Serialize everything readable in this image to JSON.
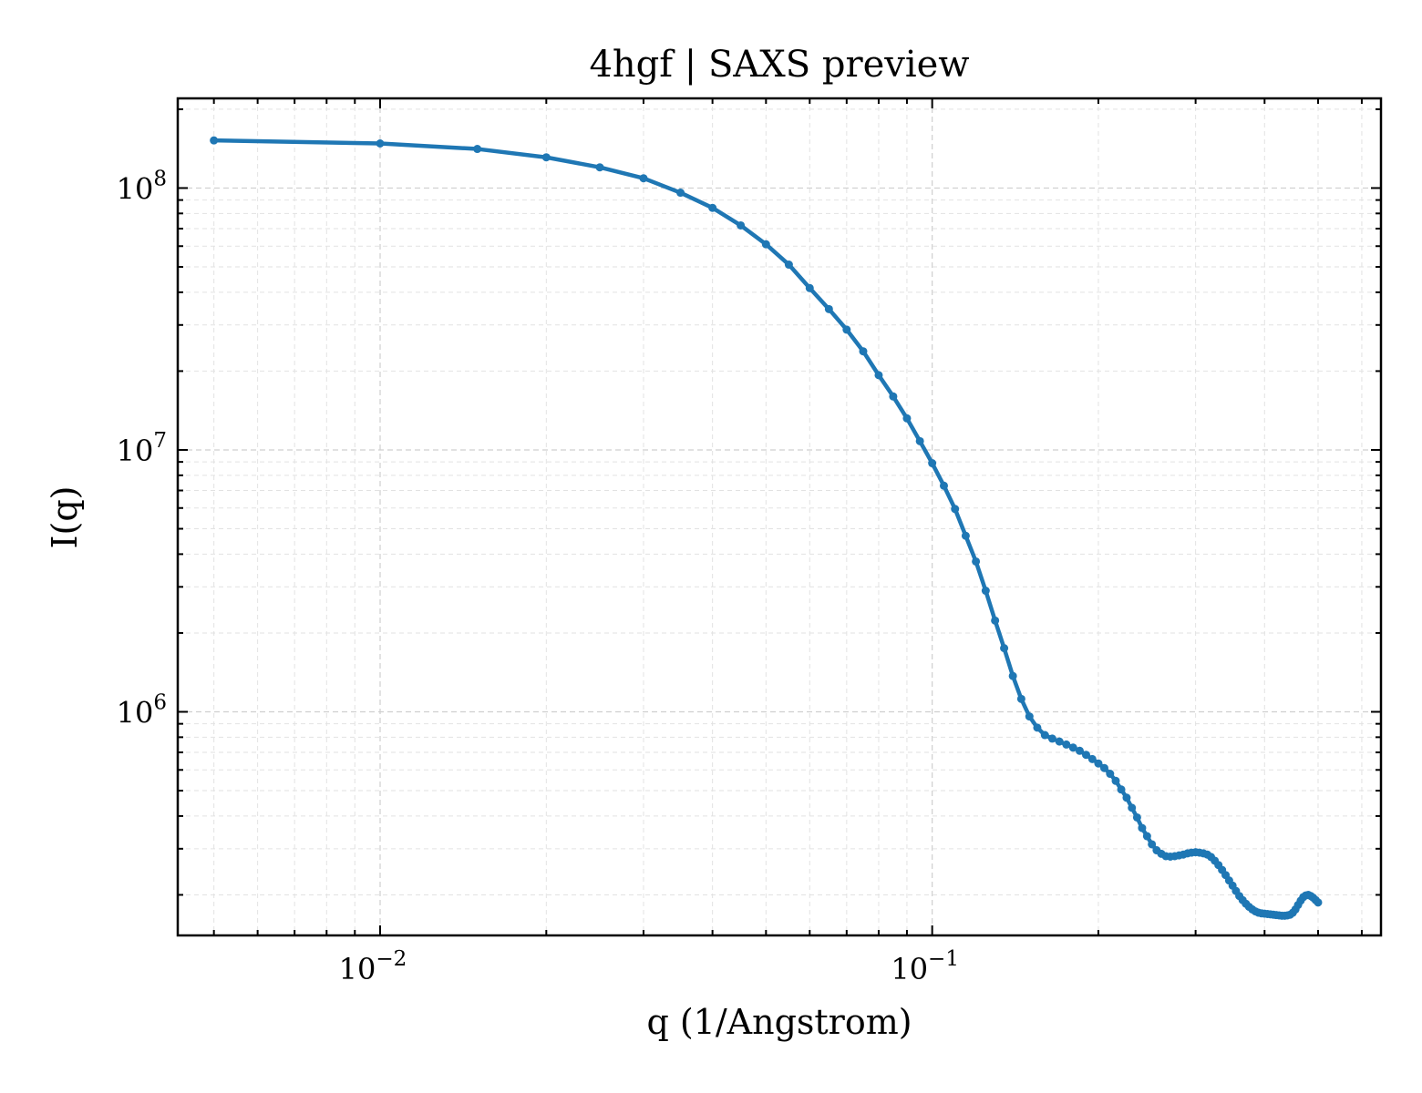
{
  "chart_data": {
    "type": "line",
    "title": "4hgf | SAXS preview",
    "xlabel": "q (1/Angstrom)",
    "ylabel": "I(q)",
    "xscale": "log",
    "yscale": "log",
    "xlim": [
      0.0043,
      0.65
    ],
    "ylim": [
      140000,
      220000000
    ],
    "grid": "on (major and minor, dashed)",
    "legend": "none",
    "ticks_direction": "in",
    "x_ticks": [
      {
        "value": 0.01,
        "base": "10",
        "exp": "−2"
      },
      {
        "value": 0.1,
        "base": "10",
        "exp": "−1"
      }
    ],
    "y_ticks": [
      {
        "value": 1000000,
        "base": "10",
        "exp": "6"
      },
      {
        "value": 10000000,
        "base": "10",
        "exp": "7"
      },
      {
        "value": 100000000,
        "base": "10",
        "exp": "8"
      }
    ],
    "colors": {
      "series": "#1f77b4"
    },
    "series": [
      {
        "x": [
          0.005,
          0.01,
          0.015,
          0.02,
          0.025,
          0.03,
          0.035,
          0.04,
          0.045,
          0.05,
          0.055,
          0.06,
          0.065,
          0.07,
          0.075,
          0.08,
          0.085,
          0.09,
          0.095,
          0.1,
          0.105,
          0.11,
          0.115,
          0.12,
          0.125,
          0.13,
          0.135,
          0.14,
          0.145,
          0.15,
          0.155,
          0.16,
          0.165,
          0.17,
          0.175,
          0.18,
          0.185,
          0.19,
          0.195,
          0.2,
          0.205,
          0.21,
          0.215,
          0.22,
          0.225,
          0.23,
          0.235,
          0.24,
          0.245,
          0.25,
          0.255,
          0.26,
          0.265,
          0.27,
          0.275,
          0.28,
          0.285,
          0.29,
          0.295,
          0.3,
          0.305,
          0.31,
          0.315,
          0.32,
          0.325,
          0.33,
          0.335,
          0.34,
          0.345,
          0.35,
          0.355,
          0.36,
          0.365,
          0.37,
          0.375,
          0.38,
          0.385,
          0.39,
          0.395,
          0.4,
          0.405,
          0.41,
          0.415,
          0.42,
          0.425,
          0.43,
          0.435,
          0.44,
          0.445,
          0.45,
          0.455,
          0.46,
          0.465,
          0.47,
          0.475,
          0.48,
          0.485,
          0.49,
          0.495,
          0.5
        ],
        "y": [
          152000000,
          148000000,
          141000000,
          131000000,
          120000000,
          109000000,
          96000000,
          84000000,
          72000000,
          61000000,
          51000000,
          41500000,
          34500000,
          28800000,
          23800000,
          19300000,
          16000000,
          13200000,
          10800000,
          8900000,
          7300000,
          5950000,
          4700000,
          3750000,
          2900000,
          2230000,
          1750000,
          1370000,
          1120000,
          960000,
          870000,
          815000,
          790000,
          770000,
          750000,
          730000,
          710000,
          685000,
          660000,
          635000,
          610000,
          580000,
          545000,
          505000,
          470000,
          430000,
          395000,
          360000,
          335000,
          312000,
          296000,
          287000,
          281000,
          280000,
          281000,
          283000,
          285000,
          288000,
          290000,
          291000,
          290000,
          288000,
          285000,
          279000,
          270000,
          260000,
          249000,
          238000,
          227000,
          217000,
          207000,
          198000,
          191000,
          185000,
          180000,
          176000,
          173000,
          171000,
          170000,
          169500,
          169000,
          168500,
          168000,
          167500,
          167000,
          166500,
          166500,
          167000,
          168000,
          171000,
          176000,
          183000,
          190000,
          196000,
          199000,
          200000,
          198000,
          195000,
          191000,
          187000
        ]
      }
    ]
  }
}
